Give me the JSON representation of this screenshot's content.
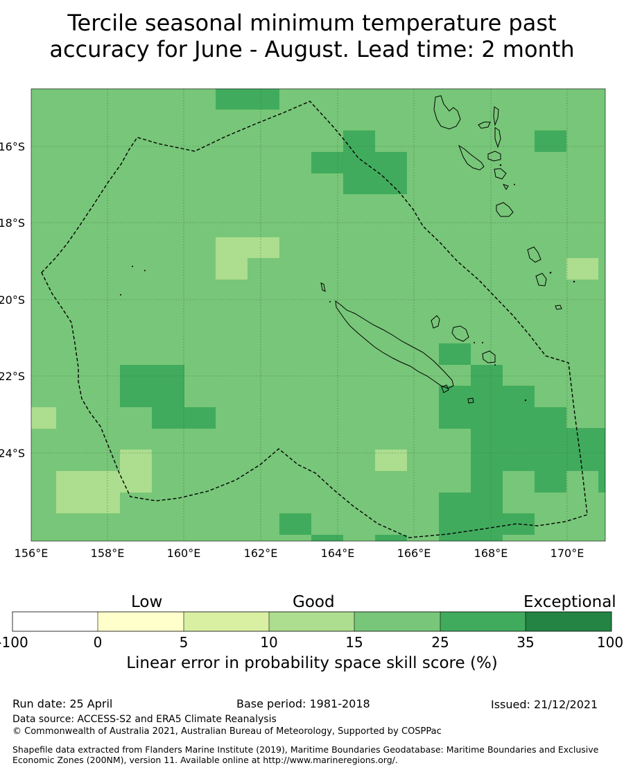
{
  "title_line1": "Tercile seasonal minimum temperature past",
  "title_line2": "accuracy for June - August. Lead time: 2 month",
  "map": {
    "lon_range": [
      156,
      171
    ],
    "lat_range": [
      -14.3,
      -26.1
    ],
    "lon_ticks": [
      "156°E",
      "158°E",
      "160°E",
      "162°E",
      "164°E",
      "166°E",
      "168°E",
      "170°E"
    ],
    "lat_ticks": [
      "16°S",
      "18°S",
      "20°S",
      "22°S",
      "24°S"
    ],
    "background_color": "#78c679",
    "grid": true
  },
  "colorbar": {
    "categories": [
      "Low",
      "Good",
      "Exceptional"
    ],
    "ticks": [
      "-100",
      "0",
      "5",
      "10",
      "15",
      "25",
      "35",
      "100"
    ],
    "colors": [
      "#ffffff",
      "#ffffcc",
      "#d9f0a3",
      "#addd8e",
      "#78c679",
      "#41ab5d",
      "#238443"
    ],
    "label": "Linear error in probability space skill score (%)"
  },
  "footer": {
    "run_date": "Run date: 25 April",
    "base_period": "Base period: 1981-2018",
    "issued": "Issued: 21/12/2021",
    "data_source": "Data source: ACCESS-S2 and ERA5 Climate Reanalysis",
    "copyright": "© Commonwealth of Australia 2021, Australian Bureau of Meteorology, Supported by COSPPac",
    "shapefile": "Shapefile data extracted from Flanders Marine Institute (2019), Maritime Boundaries Geodatabase: Maritime Boundaries and Exclusive Economic Zones (200NM), version 11. Available online at http://www.marineregions.org/."
  }
}
